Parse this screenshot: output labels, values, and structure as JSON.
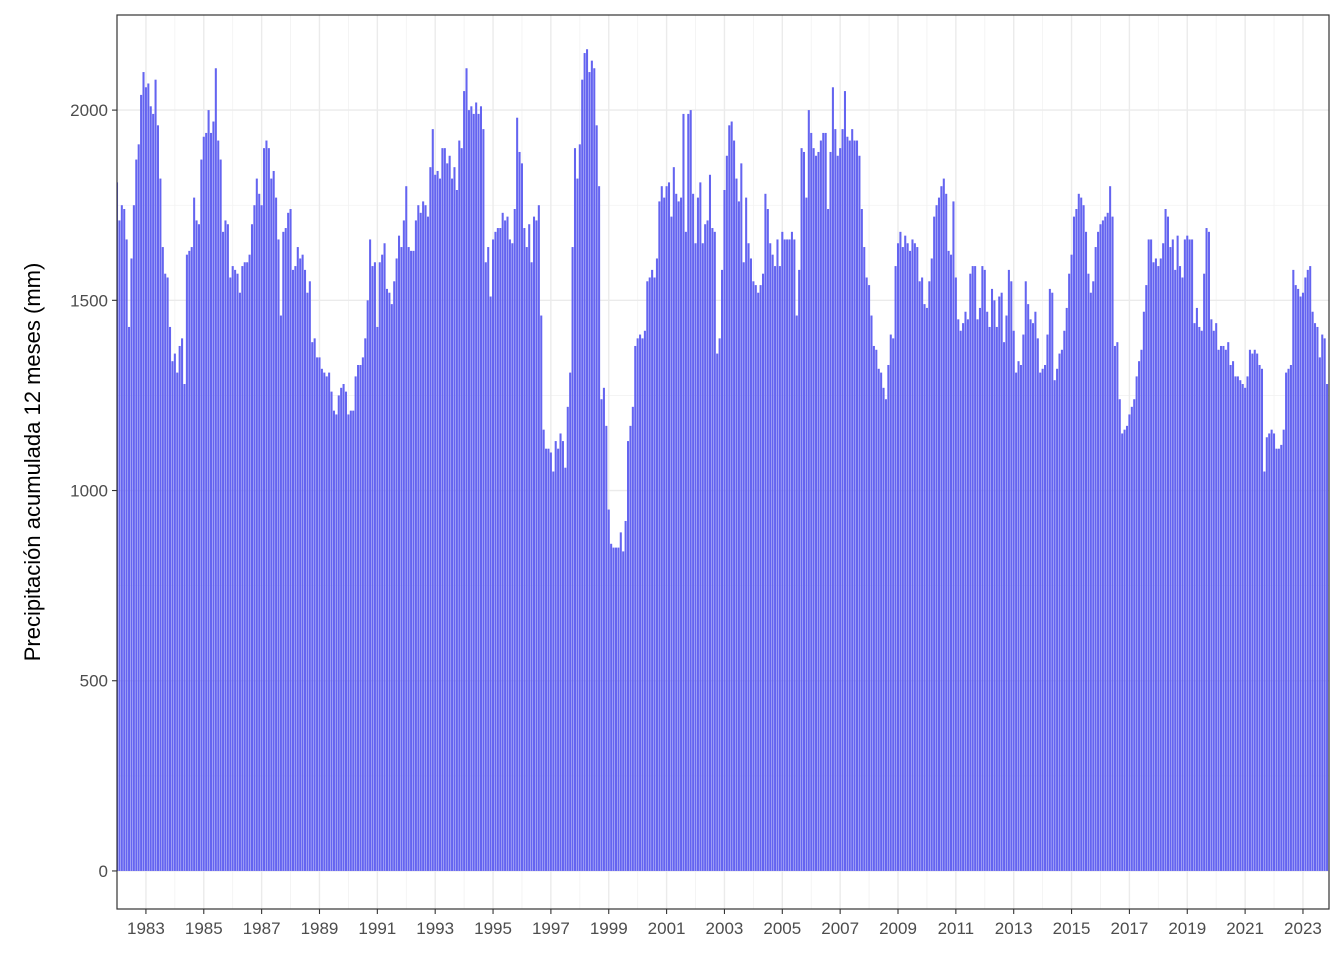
{
  "chart_data": {
    "type": "bar",
    "title": "",
    "xlabel": "",
    "ylabel": "Precipitación acumulada 12 meses (mm)",
    "ylim": [
      -100,
      2250
    ],
    "xlim": [
      1982.0,
      2023.9
    ],
    "yticks": [
      0,
      500,
      1000,
      1500,
      2000
    ],
    "xticks": [
      1983,
      1985,
      1987,
      1989,
      1991,
      1993,
      1995,
      1997,
      1999,
      2001,
      2003,
      2005,
      2007,
      2009,
      2011,
      2013,
      2015,
      2017,
      2019,
      2021,
      2023
    ],
    "grid": true,
    "bar_color": "#6464f0",
    "x_start": 1982.0,
    "x_step": 0.0833333,
    "values": [
      1810,
      1710,
      1750,
      1740,
      1660,
      1430,
      1610,
      1750,
      1870,
      1910,
      2040,
      2100,
      2060,
      2070,
      2010,
      1990,
      2080,
      1960,
      1820,
      1640,
      1570,
      1560,
      1430,
      1340,
      1360,
      1310,
      1380,
      1400,
      1280,
      1620,
      1630,
      1640,
      1770,
      1710,
      1700,
      1870,
      1930,
      1940,
      2000,
      1940,
      1970,
      2110,
      1920,
      1870,
      1680,
      1710,
      1700,
      1560,
      1590,
      1580,
      1570,
      1520,
      1590,
      1600,
      1600,
      1620,
      1700,
      1750,
      1820,
      1780,
      1750,
      1900,
      1920,
      1900,
      1820,
      1840,
      1770,
      1660,
      1460,
      1680,
      1690,
      1730,
      1740,
      1580,
      1590,
      1640,
      1610,
      1620,
      1580,
      1520,
      1550,
      1390,
      1400,
      1350,
      1350,
      1320,
      1310,
      1300,
      1310,
      1260,
      1210,
      1200,
      1250,
      1270,
      1280,
      1260,
      1200,
      1210,
      1210,
      1300,
      1330,
      1330,
      1350,
      1400,
      1500,
      1660,
      1590,
      1600,
      1430,
      1600,
      1620,
      1650,
      1530,
      1520,
      1490,
      1550,
      1610,
      1670,
      1640,
      1710,
      1800,
      1640,
      1630,
      1630,
      1710,
      1750,
      1730,
      1760,
      1750,
      1720,
      1850,
      1950,
      1830,
      1840,
      1820,
      1900,
      1900,
      1860,
      1880,
      1820,
      1850,
      1790,
      1920,
      1900,
      2050,
      2110,
      2000,
      2010,
      1990,
      2020,
      1990,
      2010,
      1950,
      1600,
      1640,
      1510,
      1660,
      1680,
      1690,
      1690,
      1730,
      1710,
      1720,
      1660,
      1650,
      1740,
      1980,
      1890,
      1860,
      1690,
      1640,
      1700,
      1600,
      1720,
      1710,
      1750,
      1460,
      1160,
      1110,
      1110,
      1100,
      1050,
      1130,
      1110,
      1150,
      1130,
      1060,
      1220,
      1310,
      1640,
      1900,
      1820,
      1910,
      2080,
      2150,
      2160,
      2100,
      2130,
      2110,
      1960,
      1800,
      1240,
      1270,
      1170,
      950,
      860,
      850,
      850,
      850,
      890,
      840,
      920,
      1130,
      1170,
      1220,
      1380,
      1400,
      1410,
      1400,
      1420,
      1550,
      1560,
      1580,
      1560,
      1610,
      1760,
      1800,
      1770,
      1800,
      1810,
      1720,
      1850,
      1780,
      1760,
      1770,
      1990,
      1680,
      1990,
      2000,
      1780,
      1650,
      1770,
      1810,
      1650,
      1700,
      1710,
      1830,
      1690,
      1680,
      1360,
      1400,
      1580,
      1790,
      1880,
      1960,
      1970,
      1920,
      1820,
      1760,
      1860,
      1600,
      1770,
      1650,
      1610,
      1550,
      1540,
      1520,
      1540,
      1570,
      1780,
      1740,
      1650,
      1620,
      1590,
      1660,
      1590,
      1680,
      1660,
      1660,
      1660,
      1680,
      1660,
      1460,
      1580,
      1900,
      1890,
      1770,
      2000,
      1940,
      1900,
      1880,
      1890,
      1920,
      1940,
      1940,
      1740,
      1890,
      2060,
      1950,
      1880,
      1900,
      1950,
      2050,
      1930,
      1920,
      1950,
      1920,
      1920,
      1880,
      1740,
      1640,
      1560,
      1540,
      1460,
      1380,
      1370,
      1320,
      1310,
      1270,
      1240,
      1330,
      1410,
      1400,
      1590,
      1650,
      1680,
      1640,
      1670,
      1650,
      1630,
      1660,
      1650,
      1640,
      1550,
      1560,
      1490,
      1480,
      1550,
      1610,
      1720,
      1750,
      1770,
      1800,
      1820,
      1780,
      1630,
      1620,
      1760,
      1560,
      1450,
      1420,
      1440,
      1470,
      1450,
      1570,
      1590,
      1590,
      1450,
      1480,
      1590,
      1580,
      1470,
      1430,
      1530,
      1500,
      1430,
      1510,
      1520,
      1390,
      1460,
      1580,
      1550,
      1420,
      1310,
      1340,
      1330,
      1410,
      1550,
      1490,
      1450,
      1440,
      1470,
      1400,
      1310,
      1320,
      1330,
      1410,
      1530,
      1520,
      1290,
      1320,
      1360,
      1370,
      1420,
      1480,
      1570,
      1620,
      1720,
      1740,
      1780,
      1770,
      1750,
      1680,
      1570,
      1520,
      1550,
      1640,
      1680,
      1700,
      1710,
      1720,
      1730,
      1800,
      1720,
      1380,
      1390,
      1240,
      1150,
      1160,
      1170,
      1200,
      1220,
      1240,
      1300,
      1340,
      1370,
      1470,
      1540,
      1660,
      1660,
      1600,
      1610,
      1590,
      1610,
      1650,
      1740,
      1720,
      1640,
      1660,
      1580,
      1670,
      1590,
      1560,
      1660,
      1670,
      1660,
      1660,
      1440,
      1480,
      1430,
      1420,
      1570,
      1690,
      1680,
      1450,
      1420,
      1440,
      1370,
      1380,
      1380,
      1370,
      1390,
      1330,
      1340,
      1300,
      1300,
      1290,
      1280,
      1270,
      1300,
      1370,
      1360,
      1370,
      1360,
      1330,
      1320,
      1050,
      1140,
      1150,
      1160,
      1150,
      1110,
      1110,
      1120,
      1160,
      1310,
      1320,
      1330,
      1580,
      1540,
      1530,
      1510,
      1520,
      1560,
      1580,
      1590,
      1470,
      1440,
      1430,
      1350,
      1410,
      1400,
      1280
    ]
  }
}
